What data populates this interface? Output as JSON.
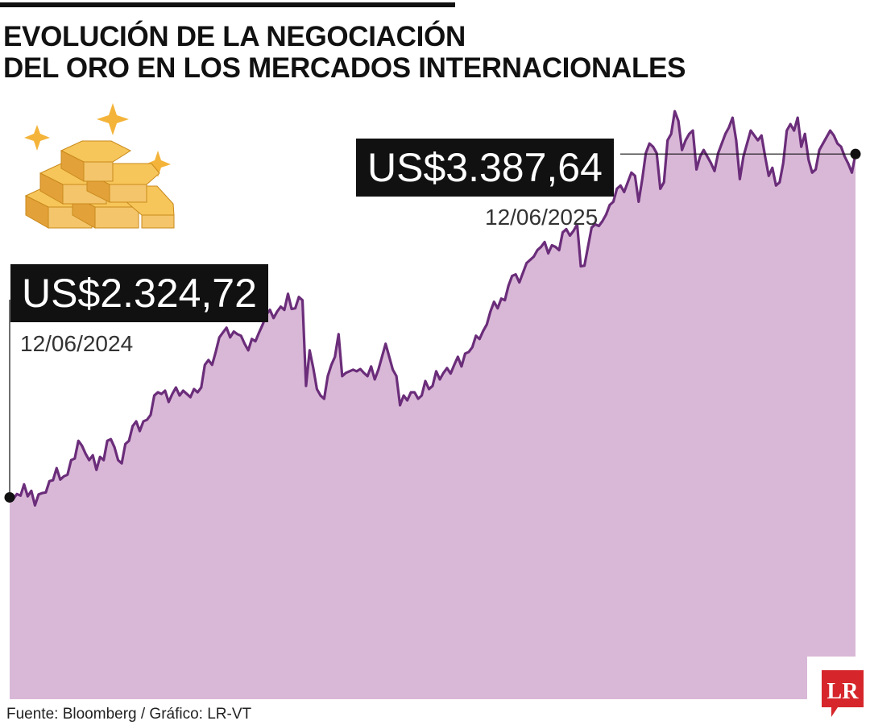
{
  "title": {
    "line1": "EVOLUCIÓN DE LA NEGOCIACIÓN",
    "line2": "DEL ORO EN LOS MERCADOS INTERNACIONALES"
  },
  "annotations": {
    "start": {
      "price": "US$2.324,72",
      "date": "12/06/2024"
    },
    "end": {
      "price": "US$3.387,64",
      "date": "12/06/2025"
    }
  },
  "source": "Fuente: Bloomberg / Gráfico: LR-VT",
  "logo": {
    "text": "LR"
  },
  "colors": {
    "line": "#6b2d7a",
    "area": "#d9b8d7",
    "label_bg": "#111111",
    "gold": "#f2b63c",
    "logo_red": "#d6262b"
  },
  "chart_data": {
    "type": "area",
    "title": "EVOLUCIÓN DE LA NEGOCIACIÓN DEL ORO EN LOS MERCADOS INTERNACIONALES",
    "xlabel": "",
    "ylabel": "",
    "x_start": "12/06/2024",
    "x_end": "12/06/2025",
    "unit": "US$",
    "grid": false,
    "legend": "none",
    "ylim": [
      1700,
      3600
    ],
    "values": [
      2324.72,
      2320,
      2335,
      2330,
      2365,
      2328,
      2345,
      2300,
      2334,
      2338,
      2340,
      2375,
      2378,
      2415,
      2380,
      2390,
      2395,
      2440,
      2445,
      2500,
      2485,
      2460,
      2440,
      2455,
      2410,
      2450,
      2440,
      2500,
      2505,
      2480,
      2440,
      2430,
      2490,
      2500,
      2545,
      2560,
      2530,
      2560,
      2565,
      2580,
      2640,
      2650,
      2645,
      2655,
      2620,
      2645,
      2665,
      2640,
      2655,
      2645,
      2635,
      2660,
      2650,
      2665,
      2735,
      2750,
      2735,
      2775,
      2820,
      2835,
      2850,
      2820,
      2838,
      2830,
      2825,
      2800,
      2780,
      2815,
      2808,
      2835,
      2860,
      2890,
      2905,
      2880,
      2900,
      2915,
      2905,
      2955,
      2908,
      2910,
      2945,
      2935,
      2670,
      2780,
      2725,
      2660,
      2640,
      2630,
      2700,
      2735,
      2760,
      2830,
      2700,
      2710,
      2715,
      2720,
      2715,
      2722,
      2710,
      2700,
      2730,
      2690,
      2720,
      2760,
      2800,
      2760,
      2720,
      2700,
      2610,
      2640,
      2625,
      2650,
      2650,
      2630,
      2640,
      2685,
      2660,
      2670,
      2715,
      2690,
      2710,
      2725,
      2708,
      2735,
      2760,
      2730,
      2770,
      2775,
      2790,
      2825,
      2815,
      2840,
      2860,
      2900,
      2930,
      2910,
      2940,
      2935,
      2980,
      3010,
      3015,
      2990,
      3020,
      3050,
      3060,
      3070,
      3090,
      3100,
      3115,
      3080,
      3105,
      3100,
      3090,
      3145,
      3155,
      3135,
      3150,
      3170,
      3040,
      3042,
      3100,
      3160,
      3170,
      3165,
      3180,
      3200,
      3230,
      3240,
      3280,
      3290,
      3270,
      3300,
      3330,
      3320,
      3240,
      3310,
      3390,
      3420,
      3410,
      3390,
      3280,
      3300,
      3430,
      3450,
      3520,
      3490,
      3400,
      3430,
      3450,
      3460,
      3340,
      3380,
      3400,
      3380,
      3360,
      3335,
      3390,
      3420,
      3450,
      3470,
      3500,
      3430,
      3310,
      3380,
      3420,
      3460,
      3445,
      3430,
      3445,
      3380,
      3320,
      3345,
      3290,
      3300,
      3360,
      3460,
      3480,
      3460,
      3500,
      3410,
      3450,
      3370,
      3330,
      3340,
      3400,
      3420,
      3440,
      3460,
      3445,
      3420,
      3410,
      3380,
      3358,
      3330,
      3387.64
    ]
  }
}
